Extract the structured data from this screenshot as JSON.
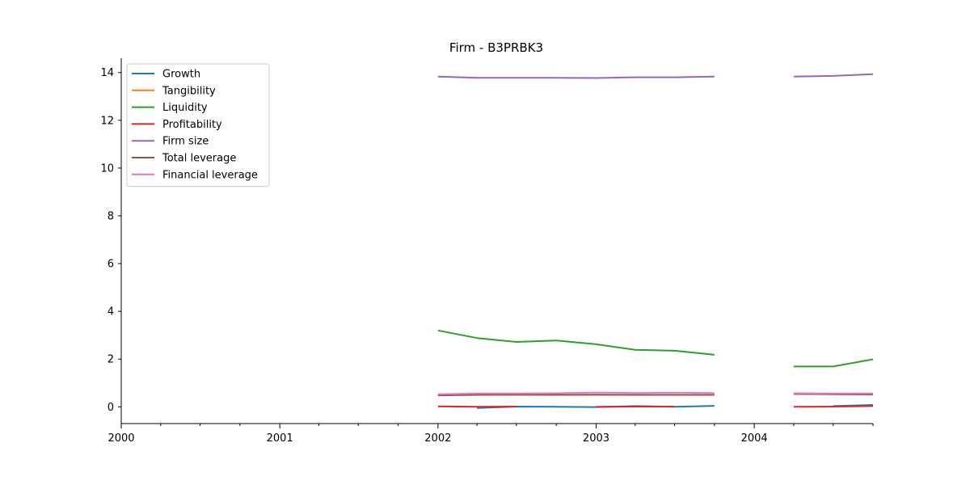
{
  "chart_data": {
    "type": "line",
    "title": "Firm - B3PRBK3",
    "xlabel": "",
    "ylabel": "",
    "xlim": [
      "2000-01-01",
      "2004-10-01"
    ],
    "ylim": [
      -0.7,
      14.6
    ],
    "x_ticks": [
      {
        "label": "2000",
        "value": "2000-01-01"
      },
      {
        "label": "2001",
        "value": "2001-01-01"
      },
      {
        "label": "2002",
        "value": "2002-01-01"
      },
      {
        "label": "2003",
        "value": "2003-01-01"
      },
      {
        "label": "2004",
        "value": "2004-01-01"
      }
    ],
    "x_minor_ticks": [
      "2000-04-01",
      "2000-07-01",
      "2000-10-01",
      "2001-04-01",
      "2001-07-01",
      "2001-10-01",
      "2002-04-01",
      "2002-07-01",
      "2002-10-01",
      "2003-04-01",
      "2003-07-01",
      "2003-10-01",
      "2004-04-01",
      "2004-07-01",
      "2004-10-01"
    ],
    "y_ticks": [
      0,
      2,
      4,
      6,
      8,
      10,
      12,
      14
    ],
    "legend_position": "top-left",
    "grid": false,
    "x": [
      "2002-01-01",
      "2002-04-01",
      "2002-07-01",
      "2002-10-01",
      "2003-01-01",
      "2003-04-01",
      "2003-07-01",
      "2003-10-01",
      "2004-01-01",
      "2004-04-01",
      "2004-07-01",
      "2004-10-01"
    ],
    "series": [
      {
        "name": "Growth",
        "color": "#1f77b4",
        "values": [
          null,
          -0.05,
          0.01,
          0.0,
          -0.01,
          0.03,
          0.0,
          0.04,
          null,
          null,
          0.03,
          0.08
        ]
      },
      {
        "name": "Tangibility",
        "color": "#ff7f0e",
        "values": [
          0.5,
          0.5,
          0.5,
          0.5,
          0.5,
          0.5,
          0.5,
          0.5,
          null,
          0.54,
          0.54,
          0.54
        ]
      },
      {
        "name": "Liquidity",
        "color": "#2ca02c",
        "values": [
          3.2,
          2.88,
          2.72,
          2.78,
          2.62,
          2.39,
          2.35,
          2.18,
          null,
          1.69,
          1.69,
          1.99
        ]
      },
      {
        "name": "Profitability",
        "color": "#d62728",
        "values": [
          0.02,
          0.0,
          0.01,
          null,
          0.0,
          0.01,
          0.01,
          null,
          null,
          0.0,
          0.01,
          0.03
        ]
      },
      {
        "name": "Firm size",
        "color": "#9467bd",
        "values": [
          13.83,
          13.78,
          13.78,
          13.78,
          13.77,
          13.8,
          13.8,
          13.83,
          null,
          13.83,
          13.86,
          13.93
        ]
      },
      {
        "name": "Total leverage",
        "color": "#8c564b",
        "values": [
          0.48,
          0.5,
          0.51,
          0.5,
          0.51,
          0.5,
          0.5,
          0.5,
          null,
          0.54,
          0.53,
          0.52
        ]
      },
      {
        "name": "Financial leverage",
        "color": "#e377c2",
        "values": [
          0.53,
          0.56,
          0.56,
          0.57,
          0.6,
          0.58,
          0.59,
          0.58,
          null,
          0.57,
          0.56,
          0.56
        ]
      }
    ]
  }
}
